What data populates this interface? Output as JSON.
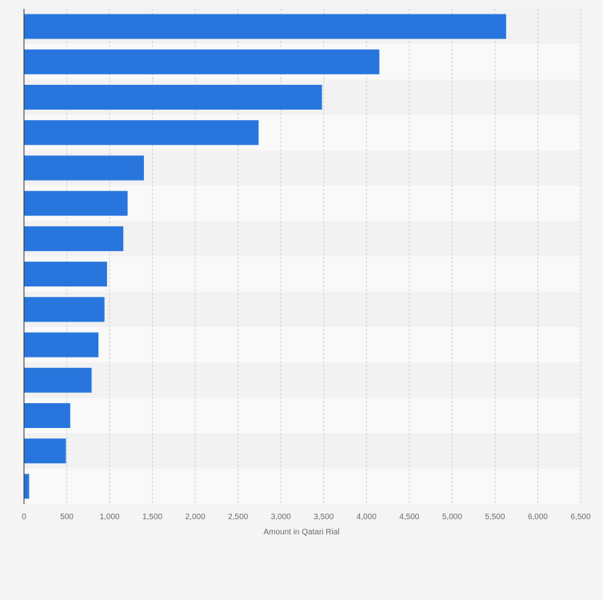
{
  "chart_data": {
    "type": "bar",
    "orientation": "horizontal",
    "categories": [
      "",
      "",
      "",
      "",
      "",
      "",
      "",
      "",
      "",
      "",
      "",
      "",
      "",
      ""
    ],
    "values": [
      5630,
      4150,
      3480,
      2740,
      1400,
      1210,
      1160,
      970,
      940,
      870,
      790,
      540,
      490,
      60
    ],
    "title": "",
    "xlabel": "Amount in Qatari Rial",
    "ylabel": "",
    "xlim": [
      0,
      6500
    ],
    "x_ticks": [
      0,
      500,
      1000,
      1500,
      2000,
      2500,
      3000,
      3500,
      4000,
      4500,
      5000,
      5500,
      6000,
      6500
    ],
    "x_tick_labels": [
      "0",
      "500",
      "1,000",
      "1,500",
      "2,000",
      "2,500",
      "3,000",
      "3,500",
      "4,000",
      "4,500",
      "5,000",
      "5,500",
      "6,000",
      "6,500"
    ],
    "grid": true,
    "legend": "none",
    "colors": {
      "bar": "#2876dd",
      "band_light": "#f9f9f9",
      "band_dark": "#f2f2f2",
      "grid": "#d2d2d2",
      "axis": "#333333",
      "page_bg": "#f4f4f4"
    }
  }
}
